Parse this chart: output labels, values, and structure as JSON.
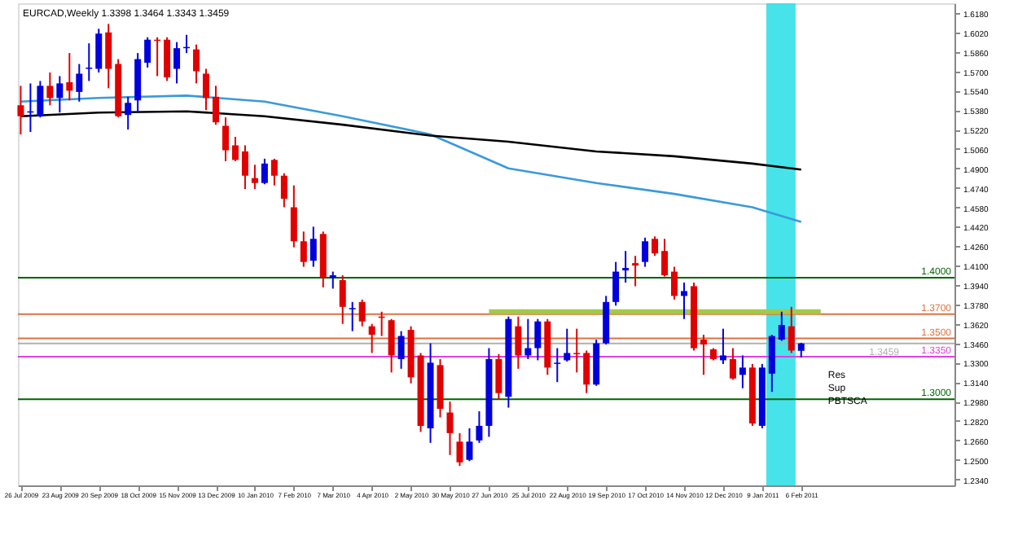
{
  "chart_data": {
    "type": "candlestick",
    "title": "EURCAD,Weekly 1.3398 1.3464 1.3343 1.3459",
    "x": [
      "2009-07-26",
      "2009-08-02",
      "2009-08-09",
      "2009-08-16",
      "2009-08-23",
      "2009-08-30",
      "2009-09-06",
      "2009-09-13",
      "2009-09-20",
      "2009-09-27",
      "2009-10-04",
      "2009-10-11",
      "2009-10-18",
      "2009-10-25",
      "2009-11-01",
      "2009-11-08",
      "2009-11-15",
      "2009-11-22",
      "2009-11-29",
      "2009-12-06",
      "2009-12-13",
      "2009-12-20",
      "2009-12-27",
      "2010-01-03",
      "2010-01-10",
      "2010-01-17",
      "2010-01-24",
      "2010-01-31",
      "2010-02-07",
      "2010-02-14",
      "2010-02-21",
      "2010-02-28",
      "2010-03-07",
      "2010-03-14",
      "2010-03-21",
      "2010-03-28",
      "2010-04-04",
      "2010-04-11",
      "2010-04-18",
      "2010-04-25",
      "2010-05-02",
      "2010-05-09",
      "2010-05-16",
      "2010-05-23",
      "2010-05-30",
      "2010-06-06",
      "2010-06-13",
      "2010-06-20",
      "2010-06-27",
      "2010-07-04",
      "2010-07-11",
      "2010-07-18",
      "2010-07-25",
      "2010-08-01",
      "2010-08-08",
      "2010-08-15",
      "2010-08-22",
      "2010-08-29",
      "2010-09-05",
      "2010-09-12",
      "2010-09-19",
      "2010-09-26",
      "2010-10-03",
      "2010-10-10",
      "2010-10-17",
      "2010-10-24",
      "2010-10-31",
      "2010-11-07",
      "2010-11-14",
      "2010-11-21",
      "2010-11-28",
      "2010-12-05",
      "2010-12-12",
      "2010-12-19",
      "2010-12-26",
      "2011-01-02",
      "2011-01-09",
      "2011-01-16",
      "2011-01-23",
      "2011-01-30",
      "2011-02-06"
    ],
    "ohlc": [
      [
        1.542,
        1.558,
        1.518,
        1.533
      ],
      [
        1.536,
        1.56,
        1.52,
        1.537
      ],
      [
        1.533,
        1.562,
        1.532,
        1.558
      ],
      [
        1.558,
        1.569,
        1.542,
        1.548
      ],
      [
        1.548,
        1.566,
        1.536,
        1.56
      ],
      [
        1.561,
        1.585,
        1.546,
        1.554
      ],
      [
        1.553,
        1.576,
        1.545,
        1.568
      ],
      [
        1.572,
        1.593,
        1.562,
        1.573
      ],
      [
        1.572,
        1.605,
        1.569,
        1.601
      ],
      [
        1.602,
        1.609,
        1.556,
        1.572
      ],
      [
        1.576,
        1.58,
        1.532,
        1.533
      ],
      [
        1.534,
        1.549,
        1.522,
        1.544
      ],
      [
        1.546,
        1.585,
        1.536,
        1.58
      ],
      [
        1.577,
        1.598,
        1.573,
        1.596
      ],
      [
        1.596,
        1.598,
        1.566,
        1.595
      ],
      [
        1.596,
        1.598,
        1.562,
        1.565
      ],
      [
        1.572,
        1.594,
        1.56,
        1.589
      ],
      [
        1.589,
        1.6,
        1.585,
        1.59
      ],
      [
        1.588,
        1.592,
        1.56,
        1.57
      ],
      [
        1.568,
        1.572,
        1.538,
        1.548
      ],
      [
        1.549,
        1.558,
        1.526,
        1.528
      ],
      [
        1.525,
        1.532,
        1.496,
        1.505
      ],
      [
        1.509,
        1.516,
        1.496,
        1.497
      ],
      [
        1.504,
        1.509,
        1.473,
        1.484
      ],
      [
        1.482,
        1.493,
        1.473,
        1.478
      ],
      [
        1.478,
        1.498,
        1.477,
        1.494
      ],
      [
        1.497,
        1.498,
        1.476,
        1.484
      ],
      [
        1.484,
        1.486,
        1.458,
        1.465
      ],
      [
        1.458,
        1.476,
        1.425,
        1.43
      ],
      [
        1.43,
        1.438,
        1.409,
        1.413
      ],
      [
        1.414,
        1.442,
        1.409,
        1.432
      ],
      [
        1.436,
        1.438,
        1.392,
        1.4
      ],
      [
        1.4,
        1.405,
        1.391,
        1.402
      ],
      [
        1.398,
        1.402,
        1.362,
        1.376
      ],
      [
        1.374,
        1.38,
        1.356,
        1.375
      ],
      [
        1.38,
        1.382,
        1.36,
        1.364
      ],
      [
        1.36,
        1.362,
        1.338,
        1.353
      ],
      [
        1.368,
        1.372,
        1.352,
        1.367
      ],
      [
        1.365,
        1.366,
        1.322,
        1.336
      ],
      [
        1.333,
        1.356,
        1.325,
        1.352
      ],
      [
        1.357,
        1.36,
        1.313,
        1.318
      ],
      [
        1.336,
        1.338,
        1.273,
        1.278
      ],
      [
        1.276,
        1.346,
        1.264,
        1.33
      ],
      [
        1.328,
        1.333,
        1.285,
        1.292
      ],
      [
        1.289,
        1.298,
        1.254,
        1.272
      ],
      [
        1.265,
        1.272,
        1.245,
        1.248
      ],
      [
        1.25,
        1.276,
        1.249,
        1.265
      ],
      [
        1.266,
        1.29,
        1.264,
        1.278
      ],
      [
        1.278,
        1.342,
        1.269,
        1.333
      ],
      [
        1.333,
        1.337,
        1.3,
        1.305
      ],
      [
        1.302,
        1.368,
        1.293,
        1.366
      ],
      [
        1.36,
        1.368,
        1.325,
        1.336
      ],
      [
        1.336,
        1.366,
        1.333,
        1.342
      ],
      [
        1.342,
        1.366,
        1.332,
        1.364
      ],
      [
        1.364,
        1.366,
        1.32,
        1.326
      ],
      [
        1.329,
        1.342,
        1.314,
        1.33
      ],
      [
        1.332,
        1.358,
        1.331,
        1.338
      ],
      [
        1.338,
        1.358,
        1.322,
        1.337
      ],
      [
        1.338,
        1.34,
        1.305,
        1.312
      ],
      [
        1.312,
        1.349,
        1.311,
        1.346
      ],
      [
        1.346,
        1.385,
        1.345,
        1.38
      ],
      [
        1.38,
        1.413,
        1.377,
        1.405
      ],
      [
        1.406,
        1.422,
        1.396,
        1.408
      ],
      [
        1.412,
        1.418,
        1.393,
        1.41
      ],
      [
        1.413,
        1.433,
        1.409,
        1.43
      ],
      [
        1.432,
        1.434,
        1.418,
        1.42
      ],
      [
        1.422,
        1.432,
        1.401,
        1.402
      ],
      [
        1.405,
        1.409,
        1.382,
        1.385
      ],
      [
        1.385,
        1.396,
        1.366,
        1.389
      ],
      [
        1.393,
        1.396,
        1.34,
        1.342
      ],
      [
        1.349,
        1.353,
        1.32,
        1.345
      ],
      [
        1.341,
        1.342,
        1.332,
        1.333
      ],
      [
        1.332,
        1.358,
        1.329,
        1.336
      ],
      [
        1.333,
        1.342,
        1.316,
        1.317
      ],
      [
        1.32,
        1.336,
        1.309,
        1.326
      ],
      [
        1.326,
        1.329,
        1.278,
        1.28
      ],
      [
        1.278,
        1.329,
        1.276,
        1.326
      ],
      [
        1.321,
        1.353,
        1.306,
        1.352
      ],
      [
        1.349,
        1.372,
        1.348,
        1.361
      ],
      [
        1.36,
        1.376,
        1.338,
        1.34
      ],
      [
        1.3398,
        1.3464,
        1.3343,
        1.3459
      ]
    ],
    "colors": [
      "#e00000",
      "#0000dd",
      "#0000dd",
      "#e00000",
      "#0000dd",
      "#e00000",
      "#0000dd",
      "#0000dd",
      "#0000dd",
      "#e00000",
      "#e00000",
      "#0000dd",
      "#0000dd",
      "#0000dd",
      "#e00000",
      "#e00000",
      "#0000dd",
      "#0000dd",
      "#e00000",
      "#e00000",
      "#e00000",
      "#e00000",
      "#e00000",
      "#e00000",
      "#e00000",
      "#0000dd",
      "#e00000",
      "#e00000",
      "#e00000",
      "#e00000",
      "#0000dd",
      "#e00000",
      "#0000dd",
      "#e00000",
      "#0000dd",
      "#e00000",
      "#e00000",
      "#e00000",
      "#e00000",
      "#0000dd",
      "#e00000",
      "#e00000",
      "#0000dd",
      "#e00000",
      "#e00000",
      "#e00000",
      "#0000dd",
      "#0000dd",
      "#0000dd",
      "#e00000",
      "#0000dd",
      "#e00000",
      "#0000dd",
      "#0000dd",
      "#e00000",
      "#0000dd",
      "#0000dd",
      "#e00000",
      "#e00000",
      "#0000dd",
      "#0000dd",
      "#0000dd",
      "#0000dd",
      "#e00000",
      "#0000dd",
      "#e00000",
      "#e00000",
      "#e00000",
      "#0000dd",
      "#e00000",
      "#e00000",
      "#e00000",
      "#0000dd",
      "#e00000",
      "#0000dd",
      "#e00000",
      "#0000dd",
      "#0000dd",
      "#0000dd",
      "#e00000",
      "#0000dd"
    ],
    "series": [
      {
        "type": "line",
        "color": "#3a9ad9",
        "x": [
          "2009-07-26",
          "2009-09-20",
          "2009-11-22",
          "2010-01-17",
          "2010-03-14",
          "2010-05-16",
          "2010-07-11",
          "2010-09-12",
          "2010-11-07",
          "2011-01-02",
          "2011-02-06"
        ],
        "values": [
          1.545,
          1.548,
          1.55,
          1.545,
          1.533,
          1.518,
          1.49,
          1.478,
          1.469,
          1.458,
          1.446
        ]
      },
      {
        "type": "line",
        "color": "#000000",
        "x": [
          "2009-07-26",
          "2009-09-20",
          "2009-11-22",
          "2010-01-17",
          "2010-03-14",
          "2010-05-16",
          "2010-07-11",
          "2010-09-12",
          "2010-11-07",
          "2011-01-02",
          "2011-02-06"
        ],
        "values": [
          1.533,
          1.536,
          1.537,
          1.533,
          1.526,
          1.517,
          1.512,
          1.504,
          1.5,
          1.494,
          1.489
        ]
      },
      {
        "type": "line",
        "color": "#a3c94a",
        "x": [
          "2010-06-27",
          "2011-02-20"
        ],
        "values": [
          1.372,
          1.372
        ]
      }
    ],
    "ref_lines": [
      {
        "axis": "y",
        "value": 1.4,
        "label": "1.4000",
        "color": "#006400"
      },
      {
        "axis": "y",
        "value": 1.37,
        "label": "1.3700",
        "color": "#e07040"
      },
      {
        "axis": "y",
        "value": 1.35,
        "label": "1.3500",
        "color": "#e07040"
      },
      {
        "axis": "y",
        "value": 1.3459,
        "label": "1.3459",
        "color": "#b0b0b0"
      },
      {
        "axis": "y",
        "value": 1.335,
        "label": "1.3350",
        "color": "#e040e0"
      },
      {
        "axis": "y",
        "value": 1.3,
        "label": "1.3000",
        "color": "#006400"
      }
    ],
    "bands": [
      {
        "axis": "x",
        "from": "2011-01-12",
        "to": "2011-02-02",
        "color": "#33e0e8"
      }
    ],
    "annotations": [
      "Res",
      "Sup",
      "PBTSCA"
    ],
    "xlim": [
      "2009-07-24",
      "2011-05-27"
    ],
    "ylim": [
      1.229,
      1.626
    ],
    "xticks": [
      {
        "value": "2009-07-26",
        "label": "26 Jul 2009"
      },
      {
        "value": "2009-08-23",
        "label": "23 Aug 2009"
      },
      {
        "value": "2009-09-20",
        "label": "20 Sep 2009"
      },
      {
        "value": "2009-10-18",
        "label": "18 Oct 2009"
      },
      {
        "value": "2009-11-15",
        "label": "15 Nov 2009"
      },
      {
        "value": "2009-12-13",
        "label": "13 Dec 2009"
      },
      {
        "value": "2010-01-10",
        "label": "10 Jan 2010"
      },
      {
        "value": "2010-02-07",
        "label": "7 Feb 2010"
      },
      {
        "value": "2010-03-07",
        "label": "7 Mar 2010"
      },
      {
        "value": "2010-04-04",
        "label": "4 Apr 2010"
      },
      {
        "value": "2010-05-02",
        "label": "2 May 2010"
      },
      {
        "value": "2010-05-30",
        "label": "30 May 2010"
      },
      {
        "value": "2010-06-27",
        "label": "27 Jun 2010"
      },
      {
        "value": "2010-07-25",
        "label": "25 Jul 2010"
      },
      {
        "value": "2010-08-22",
        "label": "22 Aug 2010"
      },
      {
        "value": "2010-09-19",
        "label": "19 Sep 2010"
      },
      {
        "value": "2010-10-17",
        "label": "17 Oct 2010"
      },
      {
        "value": "2010-11-14",
        "label": "14 Nov 2010"
      },
      {
        "value": "2010-12-12",
        "label": "12 Dec 2010"
      },
      {
        "value": "2011-01-09",
        "label": "9 Jan 2011"
      },
      {
        "value": "2011-02-06",
        "label": "6 Feb 2011"
      }
    ],
    "yticks": [
      {
        "value": 1.618,
        "label": "1.6180"
      },
      {
        "value": 1.602,
        "label": "1.6020"
      },
      {
        "value": 1.586,
        "label": "1.5860"
      },
      {
        "value": 1.57,
        "label": "1.5700"
      },
      {
        "value": 1.554,
        "label": "1.5540"
      },
      {
        "value": 1.538,
        "label": "1.5380"
      },
      {
        "value": 1.522,
        "label": "1.5220"
      },
      {
        "value": 1.506,
        "label": "1.5060"
      },
      {
        "value": 1.49,
        "label": "1.4900"
      },
      {
        "value": 1.474,
        "label": "1.4740"
      },
      {
        "value": 1.458,
        "label": "1.4580"
      },
      {
        "value": 1.442,
        "label": "1.4420"
      },
      {
        "value": 1.426,
        "label": "1.4260"
      },
      {
        "value": 1.41,
        "label": "1.4100"
      },
      {
        "value": 1.394,
        "label": "1.3940"
      },
      {
        "value": 1.378,
        "label": "1.3780"
      },
      {
        "value": 1.362,
        "label": "1.3620"
      },
      {
        "value": 1.346,
        "label": "1.3460"
      },
      {
        "value": 1.33,
        "label": "1.3300"
      },
      {
        "value": 1.314,
        "label": "1.3140"
      },
      {
        "value": 1.298,
        "label": "1.2980"
      },
      {
        "value": 1.282,
        "label": "1.2820"
      },
      {
        "value": 1.266,
        "label": "1.2660"
      },
      {
        "value": 1.25,
        "label": "1.2500"
      },
      {
        "value": 1.234,
        "label": "1.2340"
      }
    ],
    "grid": false
  }
}
